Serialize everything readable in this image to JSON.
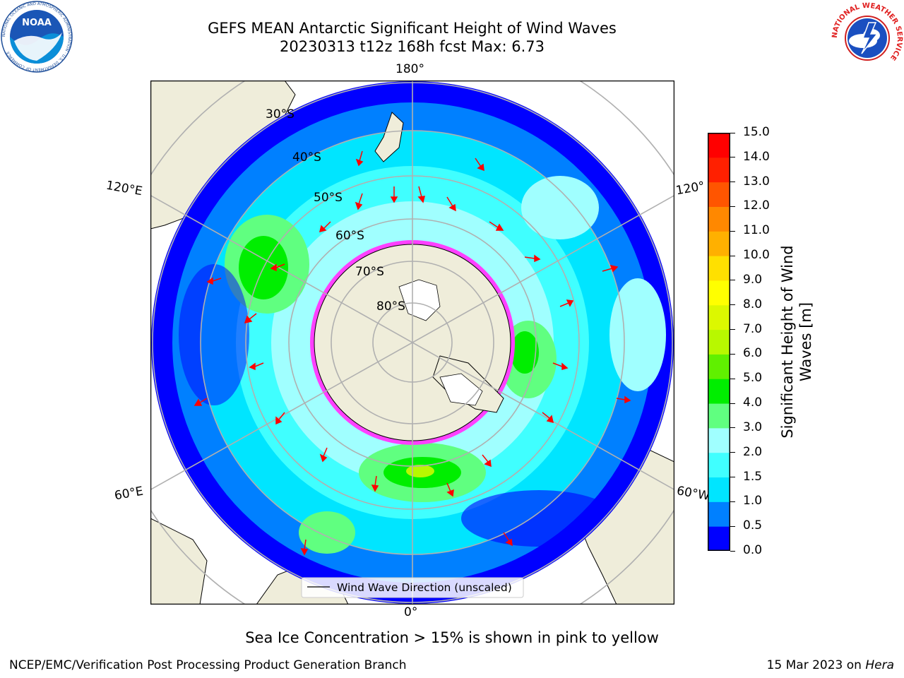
{
  "header": {
    "title_line1": "GEFS MEAN Antarctic Significant Height of Wind Waves",
    "title_line2": "20230313 t12z 168h fcst   Max: 6.73"
  },
  "logos": {
    "left": "noora-logo",
    "left_text": "NOAA",
    "left_ring_text": "NATIONAL OCEANIC AND ATMOSPHERIC ADMINISTRATION · U.S. DEPARTMENT OF COMMERCE",
    "right": "nws-logo",
    "right_ring_text": "NATIONAL WEATHER SERVICE"
  },
  "map": {
    "longitude_labels": {
      "top": "180°",
      "bottom": "0°",
      "left_upper": "120°E",
      "left_lower": "60°E",
      "right_upper": "120°",
      "right_lower": "60°W"
    },
    "latitude_labels": [
      "30°S",
      "40°S",
      "50°S",
      "60°S",
      "70°S",
      "80°S"
    ],
    "legend_label": "Wind Wave Direction (unscaled)",
    "colors": {
      "land": "#efedda",
      "ocean_low": "#0000ff",
      "ice_edge": "#ff40ff"
    }
  },
  "colorbar": {
    "label_line1": "Significant Height of Wind",
    "label_line2": "Waves [m]",
    "ticks": [
      "0.0",
      "0.5",
      "1.0",
      "1.5",
      "2.0",
      "3.0",
      "4.0",
      "5.0",
      "6.0",
      "7.0",
      "8.0",
      "9.0",
      "10.0",
      "11.0",
      "12.0",
      "13.0",
      "14.0",
      "15.0"
    ],
    "colors": [
      "#0000ff",
      "#0080ff",
      "#00e5ff",
      "#40ffff",
      "#a0ffff",
      "#60ff80",
      "#00ee00",
      "#60f000",
      "#b8f800",
      "#dcf800",
      "#ffff00",
      "#ffe000",
      "#ffb000",
      "#ff8800",
      "#ff5500",
      "#ff2000",
      "#ff0000"
    ]
  },
  "caption": "Sea Ice Concentration > 15% is shown in pink to yellow",
  "footer": {
    "left": "NCEP/EMC/Verification Post Processing Product Generation Branch",
    "right_date": "15 Mar 2023 on ",
    "right_host": "Hera"
  }
}
